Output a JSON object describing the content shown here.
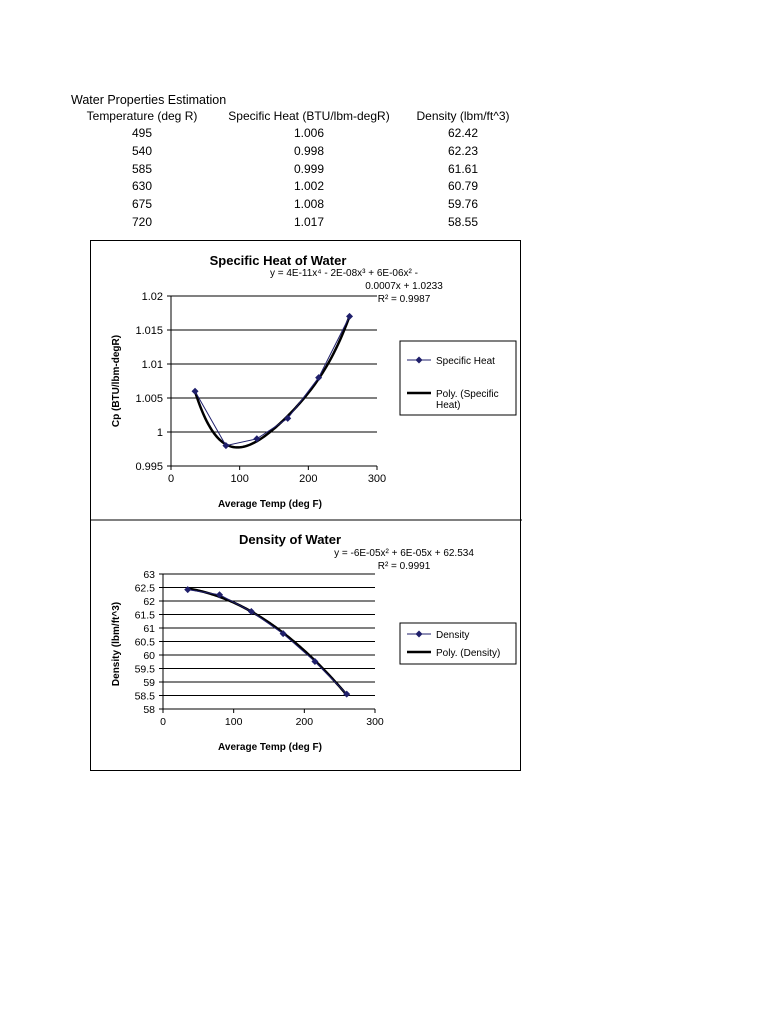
{
  "sheet": {
    "title": "Water Properties Estimation",
    "columns": [
      "Temperature (deg R)",
      "Specific Heat (BTU/lbm-degR)",
      "Density (lbm/ft^3)"
    ],
    "rows": [
      [
        "495",
        "1.006",
        "62.42"
      ],
      [
        "540",
        "0.998",
        "62.23"
      ],
      [
        "585",
        "0.999",
        "61.61"
      ],
      [
        "630",
        "1.002",
        "60.79"
      ],
      [
        "675",
        "1.008",
        "59.76"
      ],
      [
        "720",
        "1.017",
        "58.55"
      ]
    ]
  },
  "chart_data": [
    {
      "type": "scatter",
      "title": "Specific Heat of Water",
      "xlabel": "Average Temp (deg F)",
      "ylabel": "Cp (BTU/lbm-degR)",
      "xlim": [
        0,
        300
      ],
      "ylim": [
        0.995,
        1.02
      ],
      "xticks": [
        "0",
        "100",
        "200",
        "300"
      ],
      "yticks": [
        "0.995",
        "1",
        "1.005",
        "1.01",
        "1.015",
        "1.02"
      ],
      "grid": "horizontal major",
      "legend_position": "right",
      "equation_lines": [
        "y = 4E-11x⁴ - 2E-08x³ + 6E-06x² -",
        "0.0007x + 1.0233",
        "R² = 0.9987"
      ],
      "series": [
        {
          "name": "Specific Heat",
          "kind": "markers",
          "x": [
            35,
            80,
            125,
            170,
            215,
            260
          ],
          "y": [
            1.006,
            0.998,
            0.999,
            1.002,
            1.008,
            1.017
          ]
        },
        {
          "name": "Poly. (Specific Heat)",
          "kind": "trendline",
          "fit": "poly4"
        }
      ],
      "legend_labels": [
        [
          "Specific Heat"
        ],
        [
          "Poly. (Specific",
          "Heat)"
        ]
      ]
    },
    {
      "type": "scatter",
      "title": "Density of Water",
      "xlabel": "Average Temp (deg F)",
      "ylabel": "Density (lbm/ft^3)",
      "xlim": [
        0,
        300
      ],
      "ylim": [
        58,
        63
      ],
      "xticks": [
        "0",
        "100",
        "200",
        "300"
      ],
      "yticks": [
        "58",
        "58.5",
        "59",
        "59.5",
        "60",
        "60.5",
        "61",
        "61.5",
        "62",
        "62.5",
        "63"
      ],
      "grid": "horizontal major",
      "legend_position": "right",
      "equation_lines": [
        "y = -6E-05x² + 6E-05x + 62.534",
        "R² = 0.9991"
      ],
      "series": [
        {
          "name": "Density",
          "kind": "markers",
          "x": [
            35,
            80,
            125,
            170,
            215,
            260
          ],
          "y": [
            62.42,
            62.23,
            61.61,
            60.79,
            59.76,
            58.55
          ]
        },
        {
          "name": "Poly. (Density)",
          "kind": "trendline",
          "fit": "poly2"
        }
      ],
      "legend_labels": [
        [
          "Density"
        ],
        [
          "Poly. (Density)"
        ]
      ]
    }
  ],
  "colors": {
    "marker": "#1f1f6b",
    "trendline": "#000000",
    "grid": "#000000",
    "frame": "#000000"
  }
}
